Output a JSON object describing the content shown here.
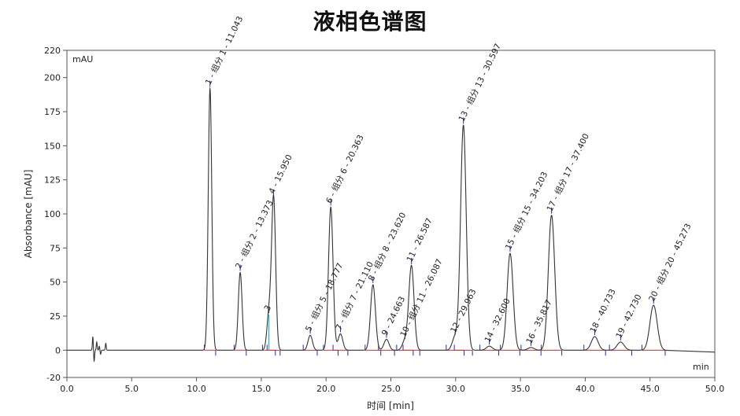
{
  "title": "液相色谱图",
  "chart_data": {
    "type": "line",
    "ylabel": "Absorbance [mAU]",
    "xlabel": "时间 [min]",
    "y_unit_label": "mAU",
    "x_unit_label": "min",
    "xlim": [
      0,
      50
    ],
    "ylim": [
      -20,
      220
    ],
    "x_ticks": [
      "0.0",
      "5.0",
      "10.0",
      "15.0",
      "20.0",
      "25.0",
      "30.0",
      "35.0",
      "40.0",
      "45.0",
      "50.0"
    ],
    "y_ticks": [
      "-20",
      "0",
      "25",
      "50",
      "75",
      "100",
      "125",
      "150",
      "175",
      "200",
      "220"
    ],
    "grid": false,
    "peaks": [
      {
        "label": "1 - 组分 1 - 11.043",
        "rt": 11.043,
        "height": 192
      },
      {
        "label": "2 - 组分 2 - 13.373",
        "rt": 13.373,
        "height": 57
      },
      {
        "label": "3",
        "rt": 15.59,
        "height": 26
      },
      {
        "label": "4 - 15.950",
        "rt": 15.95,
        "height": 112
      },
      {
        "label": "5 - 组分 5 - 18.777",
        "rt": 18.777,
        "height": 11
      },
      {
        "label": "6 - 组分 6 - 20.363",
        "rt": 20.363,
        "height": 105
      },
      {
        "label": "7 - 组分 7 - 21.110",
        "rt": 21.11,
        "height": 12
      },
      {
        "label": "8 - 组分 8 - 23.620",
        "rt": 23.62,
        "height": 48
      },
      {
        "label": "9 - 24.663",
        "rt": 24.663,
        "height": 8
      },
      {
        "label": "10 - 组分 11 - 26.087",
        "rt": 26.087,
        "height": 7
      },
      {
        "label": "11 - 26.587",
        "rt": 26.587,
        "height": 62
      },
      {
        "label": "12 - 29.963",
        "rt": 29.963,
        "height": 10
      },
      {
        "label": "13 - 组分 13 - 30.597",
        "rt": 30.597,
        "height": 165
      },
      {
        "label": "14 - 32.600",
        "rt": 32.6,
        "height": 3
      },
      {
        "label": "15 - 组分 15 - 34.203",
        "rt": 34.203,
        "height": 71
      },
      {
        "label": "16 - 35.817",
        "rt": 35.817,
        "height": 2
      },
      {
        "label": "17 - 组分 17 - 37.400",
        "rt": 37.4,
        "height": 99
      },
      {
        "label": "18 - 40.733",
        "rt": 40.733,
        "height": 10
      },
      {
        "label": "19 - 42.730",
        "rt": 42.73,
        "height": 6
      },
      {
        "label": "20 - 组分 20 - 45.273",
        "rt": 45.273,
        "height": 33
      }
    ],
    "baseline_disturbance": [
      {
        "x": 2.0,
        "y": 10
      },
      {
        "x": 2.1,
        "y": -8
      },
      {
        "x": 2.3,
        "y": 6
      },
      {
        "x": 2.5,
        "y": 3
      },
      {
        "x": 2.6,
        "y": -3
      },
      {
        "x": 3.0,
        "y": 5
      }
    ],
    "line_color": "#333333",
    "baseline_color": "#e03030",
    "marker_color": "#2a2aa8",
    "shoulder_color": "#20b8c8"
  }
}
